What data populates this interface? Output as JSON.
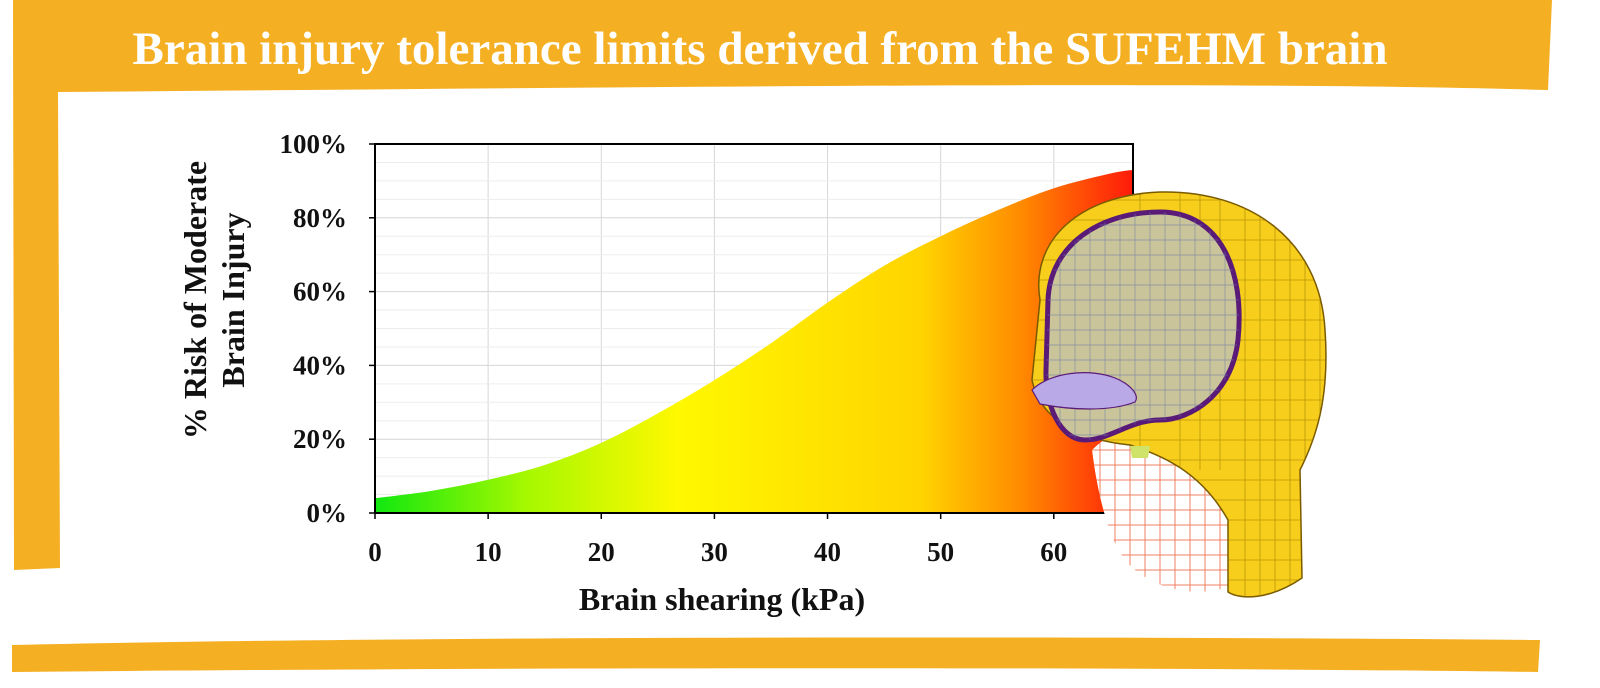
{
  "frame": {
    "title": "Brain injury tolerance limits derived from the SUFEHM brain",
    "accent_color": "#F5AF22"
  },
  "chart_data": {
    "type": "area",
    "title": "",
    "xlabel": "Brain shearing (kPa)",
    "ylabel_lines": [
      "% Risk of Moderate",
      "Brain Injury"
    ],
    "xlim": [
      0,
      67
    ],
    "ylim": [
      0,
      100
    ],
    "x_ticks": [
      "0",
      "10",
      "20",
      "30",
      "40",
      "50",
      "60"
    ],
    "y_ticks": [
      "0%",
      "20%",
      "40%",
      "60%",
      "80%",
      "100%"
    ],
    "grid": true,
    "series": [
      {
        "x": [
          0,
          5,
          10,
          15,
          20,
          25,
          30,
          35,
          40,
          45,
          50,
          55,
          60,
          65,
          67
        ],
        "y": [
          4,
          6,
          9,
          13,
          19,
          27,
          36,
          46,
          57,
          67,
          75,
          82,
          88,
          92,
          93
        ]
      }
    ],
    "fill_gradient": [
      "#11E810",
      "#A6F800",
      "#FFF800",
      "#FFD400",
      "#FF8C00",
      "#FF1A0A"
    ]
  },
  "illustration": {
    "name": "head-finite-element-model",
    "colors": [
      "#F6CE1B",
      "#C9C49A",
      "#5A1A78",
      "#F08060",
      "#B9A9E6"
    ]
  }
}
